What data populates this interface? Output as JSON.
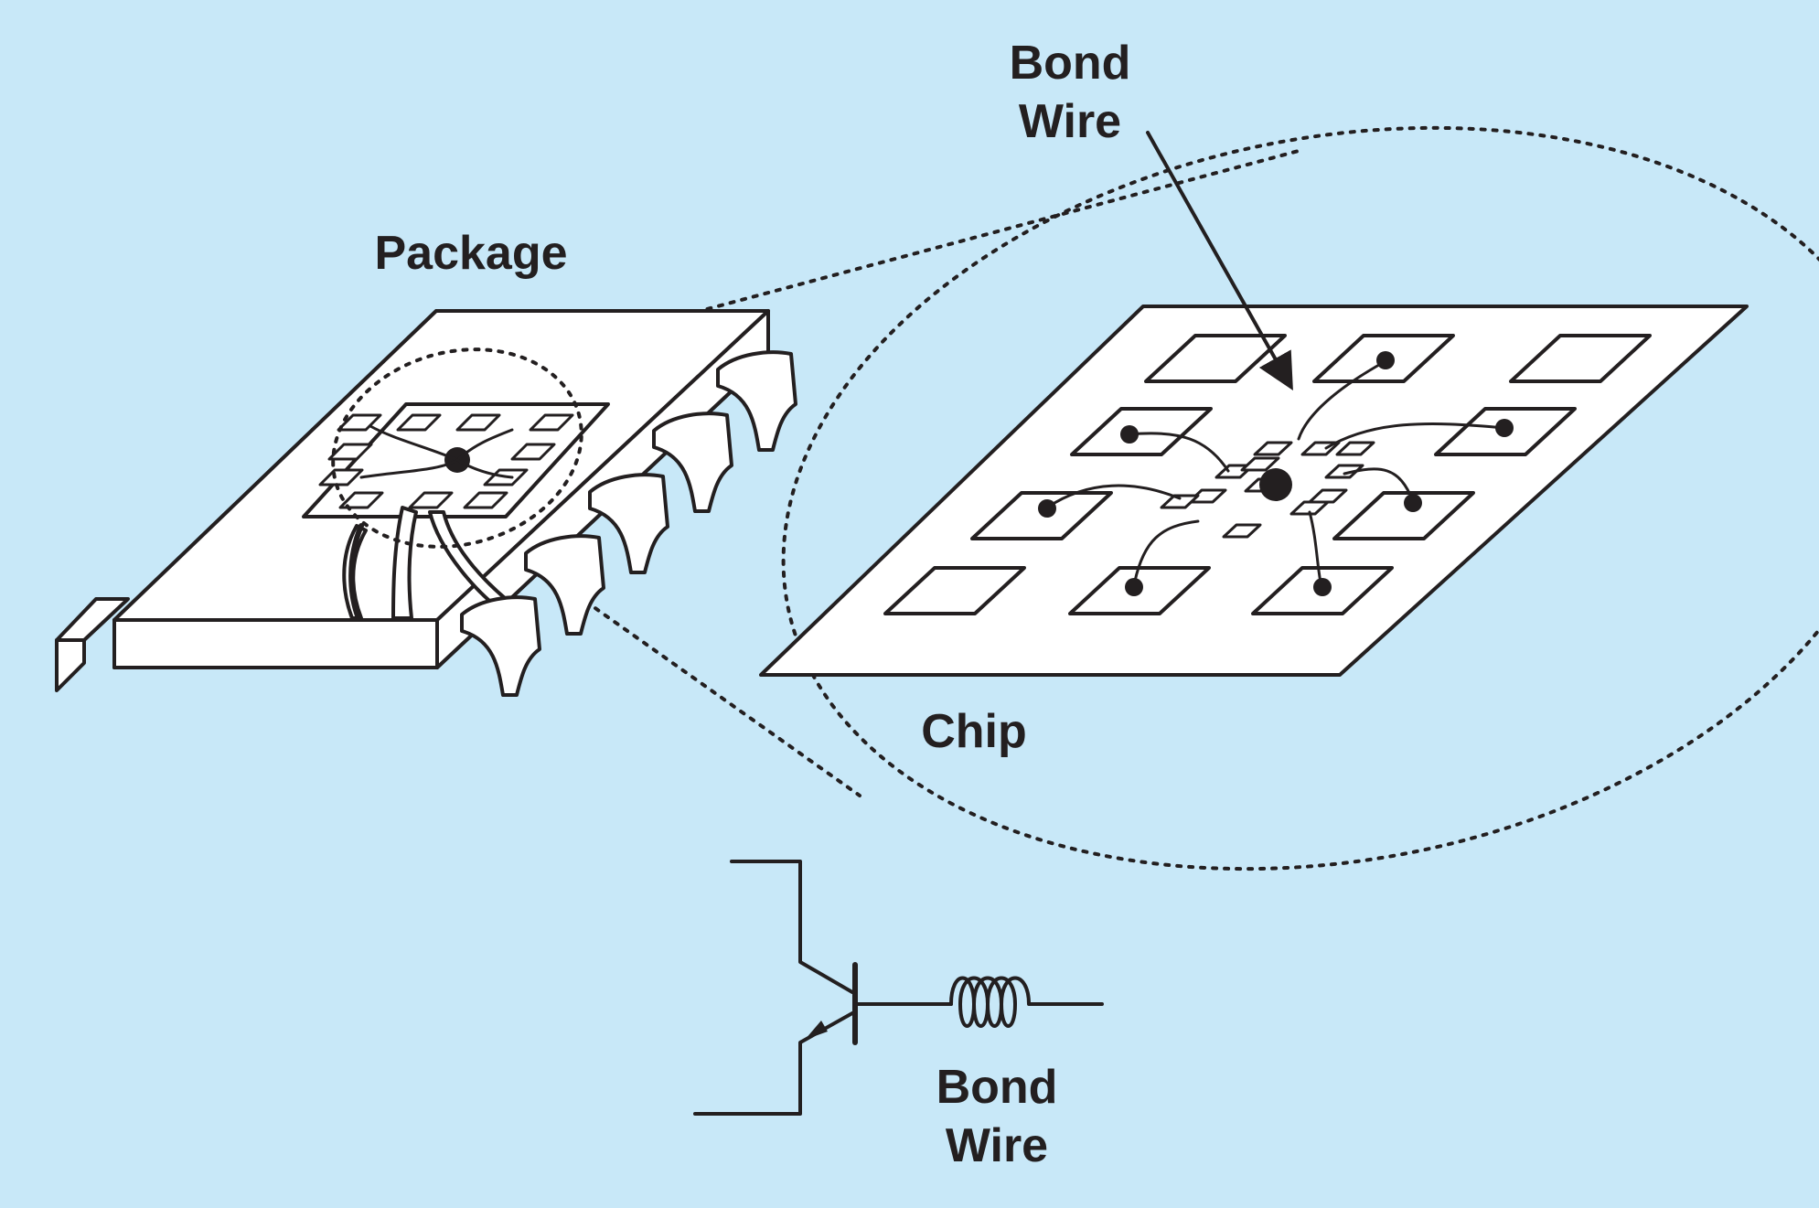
{
  "background_color": "#c8e8f8",
  "ink_color": "#231f20",
  "labels": {
    "package": "Package",
    "chip": "Chip",
    "bond_wire_top": [
      "Bond",
      "Wire"
    ],
    "bond_wire_bottom": [
      "Bond",
      "Wire"
    ]
  }
}
